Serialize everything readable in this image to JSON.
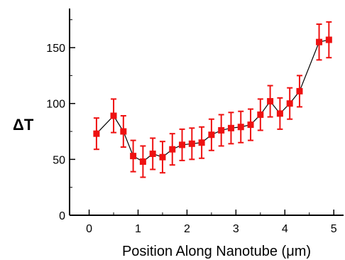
{
  "chart_data": {
    "type": "scatter",
    "title": "",
    "xlabel": "Position Along Nanotube  (μm)",
    "ylabel": "ΔT",
    "xlim": [
      -0.4,
      5.2
    ],
    "ylim": [
      0,
      185
    ],
    "xticks": [
      0,
      1,
      2,
      3,
      4,
      5
    ],
    "yticks": [
      0,
      50,
      100,
      150
    ],
    "grid": false,
    "legend": "none",
    "marker_color": "#ee1111",
    "line_color": "#000000",
    "series": [
      {
        "x": [
          0.15,
          0.5,
          0.7,
          0.9,
          1.1,
          1.3,
          1.5,
          1.7,
          1.9,
          2.1,
          2.3,
          2.5,
          2.7,
          2.9,
          3.1,
          3.3,
          3.5,
          3.7,
          3.9,
          4.1,
          4.3,
          4.7,
          4.9
        ],
        "y": [
          73,
          89,
          75,
          53,
          48,
          55,
          52,
          59,
          63,
          64,
          65,
          72,
          76,
          78,
          79,
          81,
          90,
          102,
          91,
          100,
          111,
          155,
          157
        ],
        "yerr": [
          14,
          15,
          14,
          14,
          14,
          14,
          14,
          14,
          14,
          14,
          14,
          14,
          14,
          14,
          14,
          14,
          14,
          14,
          14,
          14,
          14,
          16,
          16
        ]
      }
    ]
  }
}
